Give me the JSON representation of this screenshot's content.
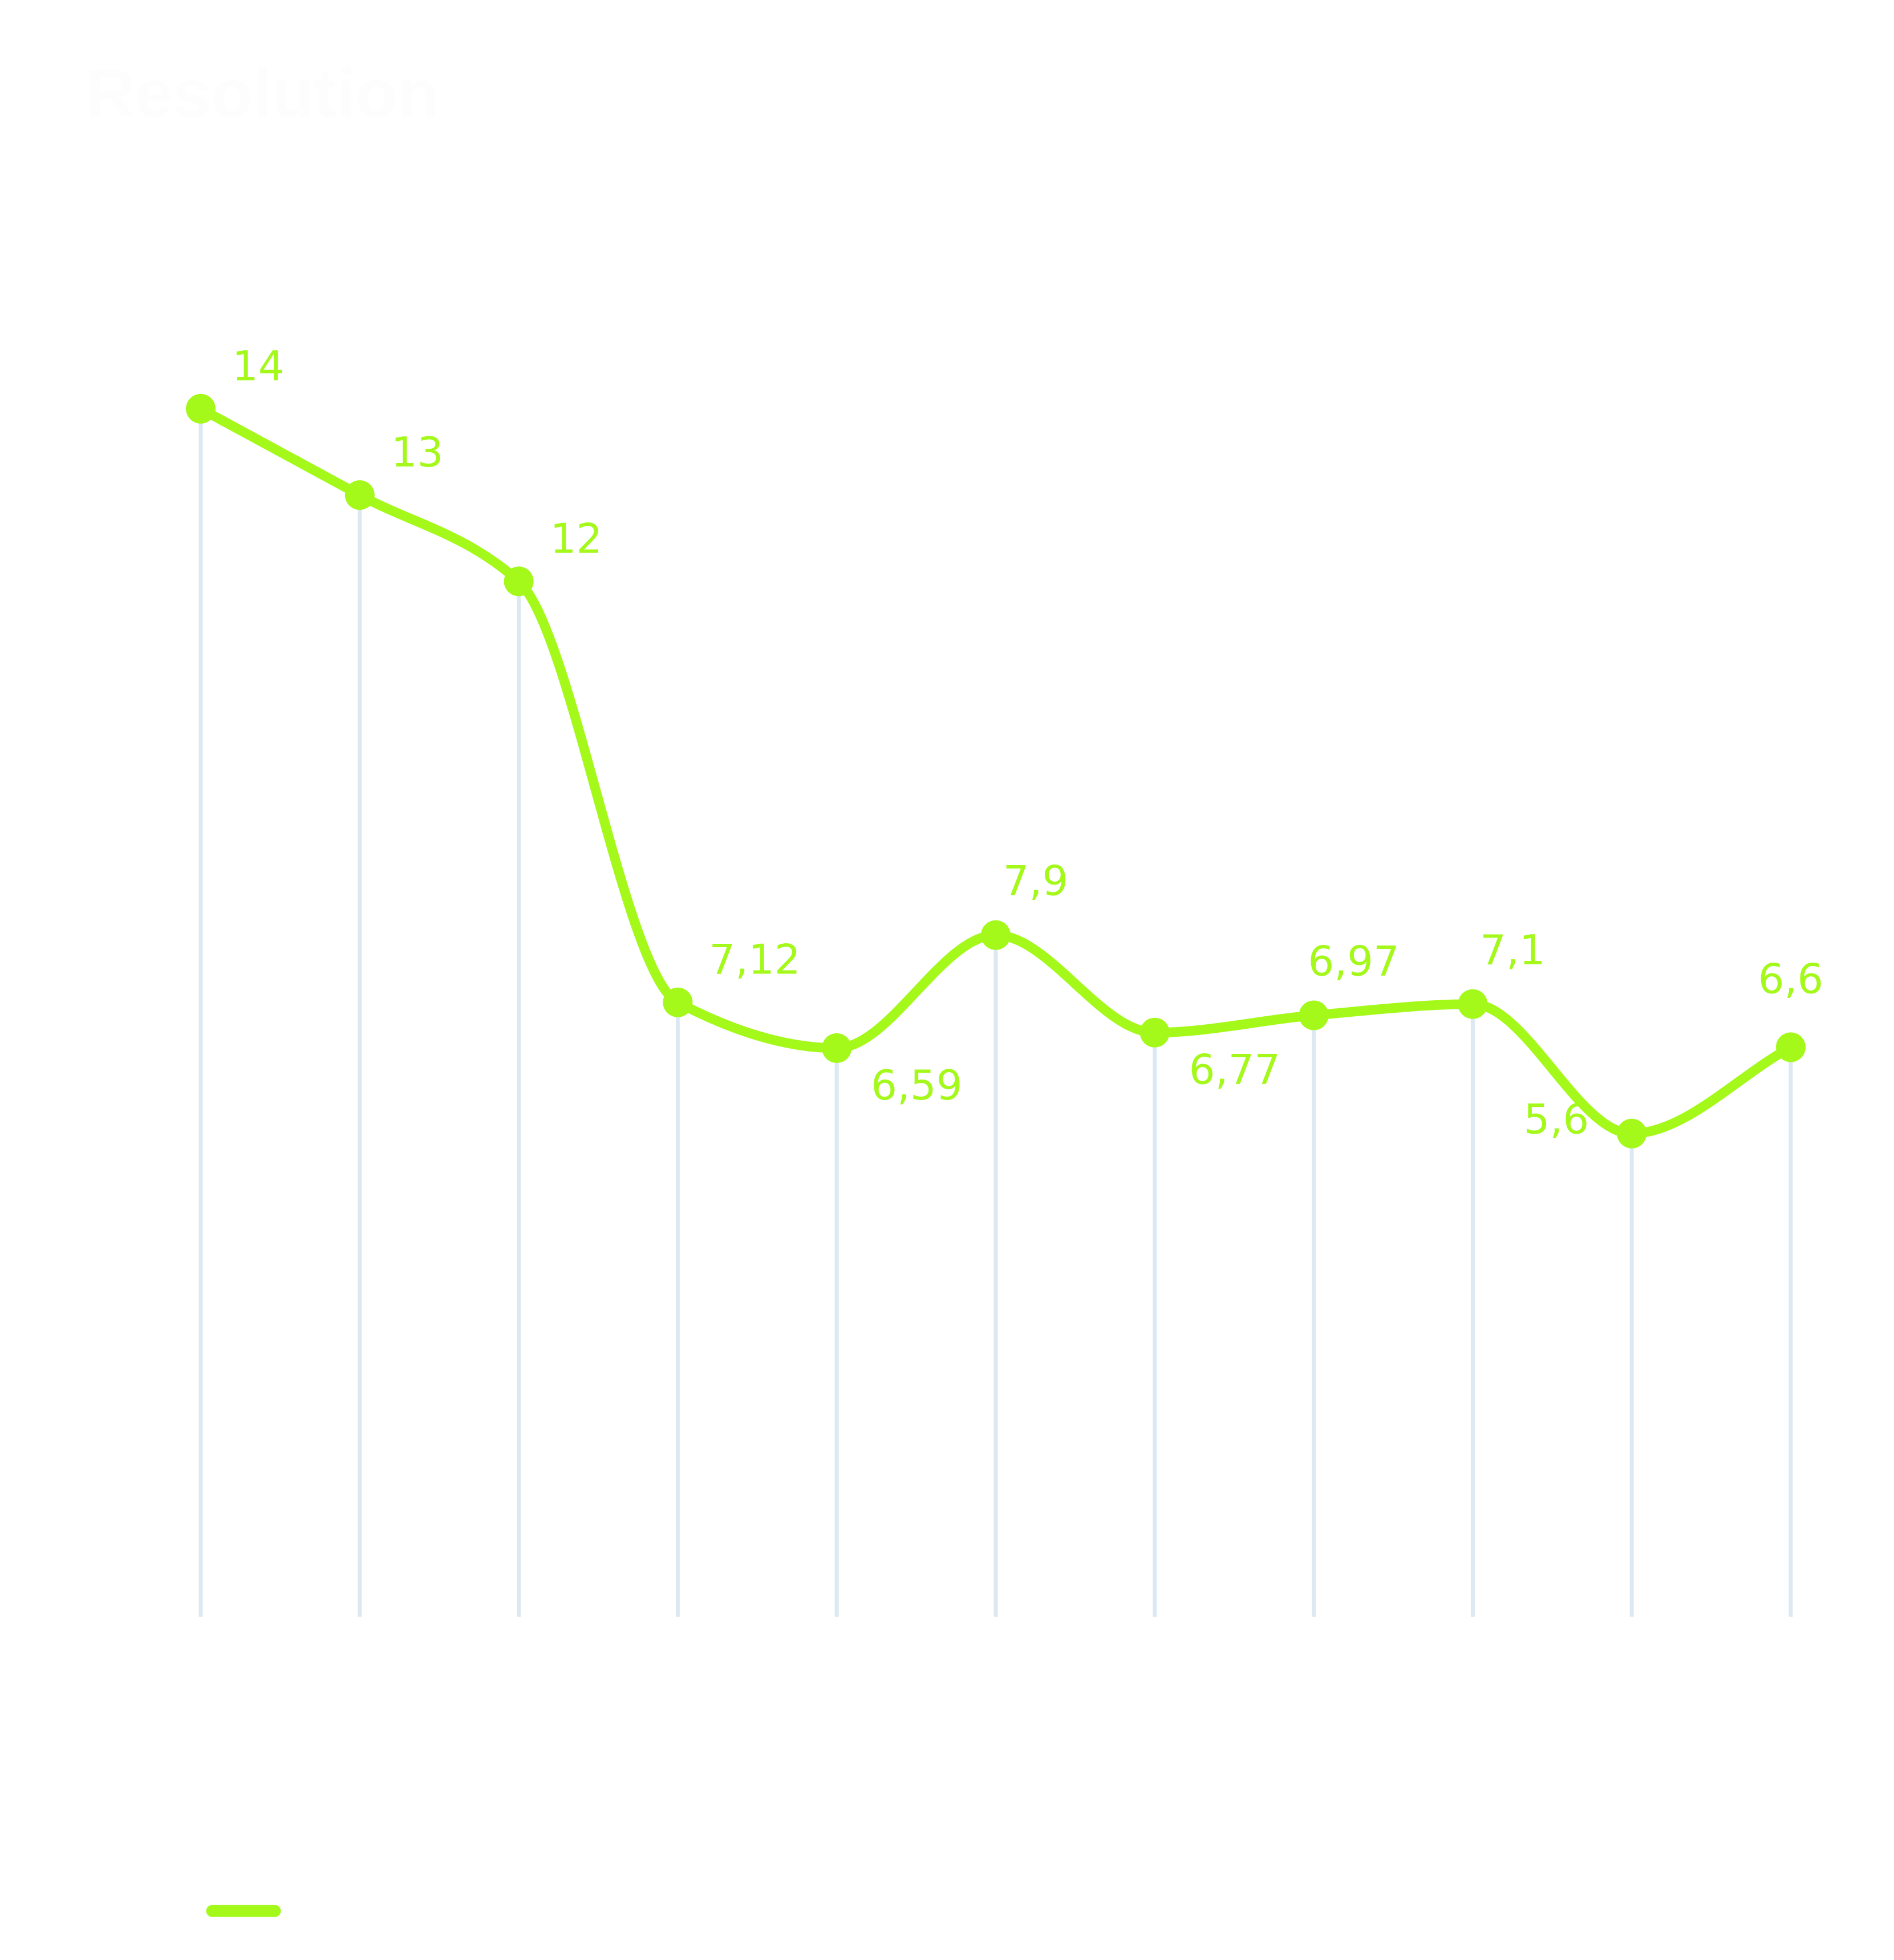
{
  "chart_data": {
    "type": "line",
    "title": "Resolution",
    "categories": [
      "",
      "",
      "",
      "",
      "",
      "",
      "",
      "",
      "",
      "",
      ""
    ],
    "series": [
      {
        "values": [
          14,
          13,
          12,
          7.12,
          6.59,
          7.9,
          6.77,
          6.97,
          7.1,
          5.6,
          6.6
        ],
        "labels": [
          "14",
          "13",
          "12",
          "7,12",
          "6,59",
          "7,9",
          "6,77",
          "6,97",
          "7,1",
          "5,6",
          "6,6"
        ]
      }
    ],
    "ylim": [
      0,
      18.74
    ],
    "grid": true,
    "smooth": true,
    "legend": "bottom-left"
  },
  "colors": {
    "series": "#a4f91b",
    "gridline": "#dce9f3",
    "background": "#ffffff",
    "title": "#fdfdfd"
  }
}
